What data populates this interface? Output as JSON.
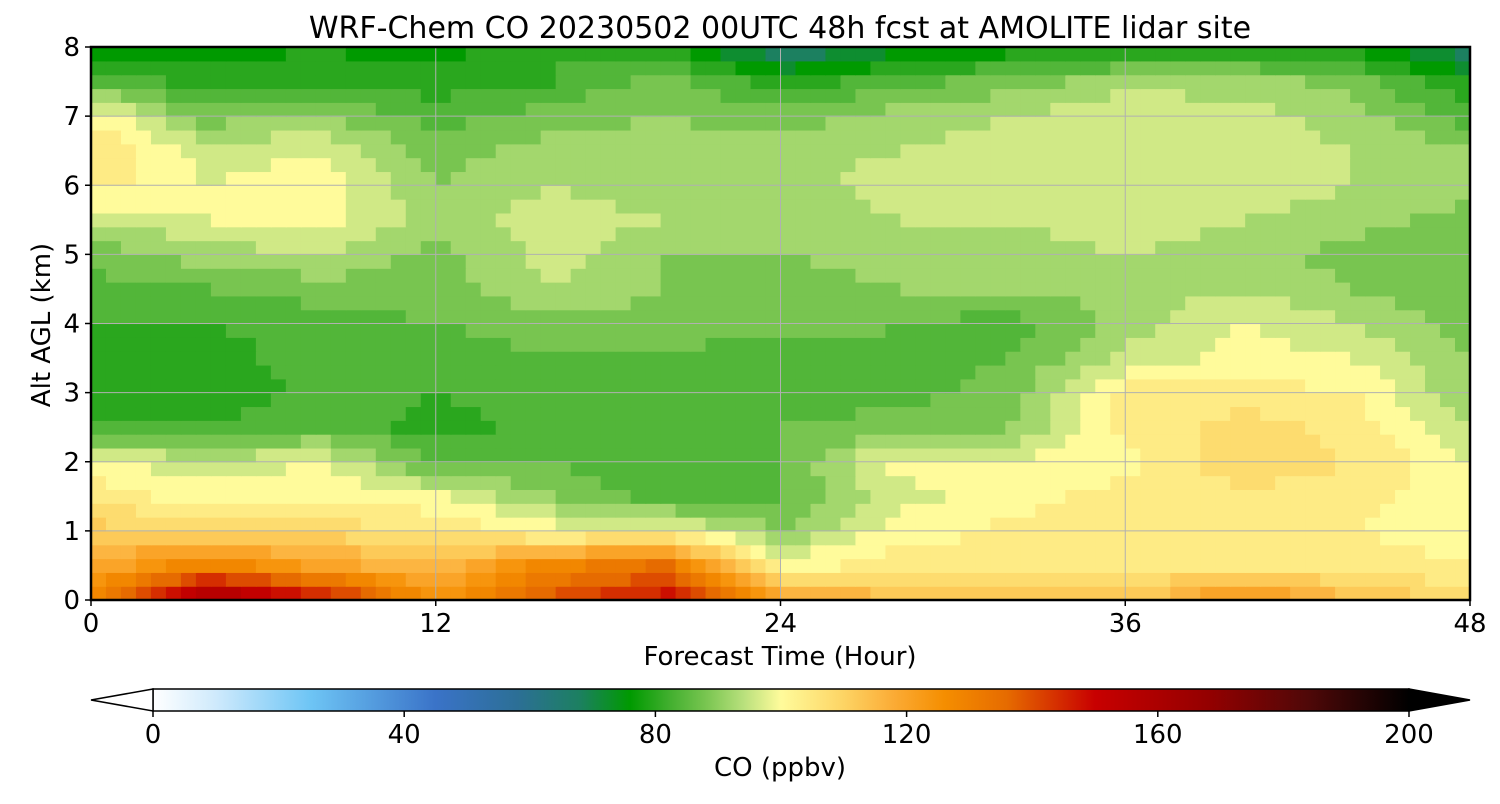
{
  "chart_data": {
    "type": "heatmap",
    "title": "WRF-Chem CO  20230502 00UTC 48h fcst at AMOLITE lidar site",
    "xlabel": "Forecast Time (Hour)",
    "ylabel": "Alt AGL (km)",
    "xlim": [
      0,
      48
    ],
    "ylim": [
      0,
      8
    ],
    "xticks": [
      "0",
      "12",
      "24",
      "36",
      "48"
    ],
    "yticks": [
      "0",
      "1",
      "2",
      "3",
      "4",
      "5",
      "6",
      "7",
      "8"
    ],
    "grid": true,
    "x": [
      0,
      4,
      8,
      12,
      16,
      20,
      24,
      28,
      32,
      36,
      40,
      44,
      48
    ],
    "y": [
      0,
      0.5,
      1,
      1.5,
      2,
      2.5,
      3,
      3.5,
      4,
      4.5,
      5,
      5.5,
      6,
      6.5,
      7,
      7.5,
      8
    ],
    "z": [
      [
        128,
        165,
        150,
        125,
        140,
        150,
        122,
        115,
        112,
        112,
        125,
        115,
        108
      ],
      [
        118,
        130,
        120,
        115,
        128,
        135,
        100,
        104,
        103,
        104,
        106,
        104,
        102
      ],
      [
        112,
        110,
        108,
        106,
        100,
        100,
        90,
        100,
        103,
        103,
        103,
        102,
        100
      ],
      [
        104,
        100,
        102,
        99,
        90,
        84,
        86,
        96,
        101,
        103,
        105,
        103,
        100
      ],
      [
        100,
        95,
        98,
        85,
        86,
        82,
        86,
        100,
        99,
        101,
        109,
        106,
        98
      ],
      [
        82,
        82,
        86,
        80,
        84,
        82,
        86,
        88,
        90,
        103,
        108,
        104,
        94
      ],
      [
        78,
        78,
        84,
        82,
        84,
        84,
        84,
        84,
        88,
        104,
        104,
        102,
        90
      ],
      [
        80,
        80,
        84,
        84,
        86,
        85,
        84,
        85,
        86,
        95,
        100,
        98,
        90
      ],
      [
        82,
        82,
        84,
        86,
        88,
        88,
        88,
        86,
        84,
        92,
        98,
        94,
        88
      ],
      [
        84,
        86,
        88,
        88,
        94,
        90,
        88,
        90,
        90,
        92,
        94,
        90,
        86
      ],
      [
        88,
        92,
        94,
        88,
        96,
        90,
        90,
        92,
        92,
        94,
        92,
        88,
        86
      ],
      [
        94,
        98,
        100,
        92,
        96,
        94,
        90,
        94,
        94,
        96,
        94,
        92,
        88
      ],
      [
        104,
        98,
        100,
        90,
        94,
        92,
        92,
        96,
        96,
        98,
        96,
        94,
        92
      ],
      [
        106,
        96,
        98,
        88,
        92,
        92,
        92,
        94,
        96,
        98,
        96,
        94,
        90
      ],
      [
        102,
        88,
        90,
        84,
        88,
        90,
        88,
        92,
        94,
        98,
        96,
        92,
        84
      ],
      [
        86,
        80,
        80,
        80,
        82,
        88,
        80,
        84,
        88,
        92,
        92,
        88,
        78
      ],
      [
        76,
        76,
        78,
        76,
        82,
        80,
        64,
        72,
        76,
        78,
        78,
        76,
        66
      ]
    ],
    "colorbar": {
      "label": "CO  (ppbv)",
      "min": 0,
      "max": 200,
      "extend": "both",
      "ticks": [
        "0",
        "40",
        "80",
        "120",
        "160",
        "200"
      ],
      "colormap": [
        {
          "value": 0,
          "color": "#ffffff"
        },
        {
          "value": 10,
          "color": "#cfeafc"
        },
        {
          "value": 25,
          "color": "#6ec5f5"
        },
        {
          "value": 45,
          "color": "#3a73c8"
        },
        {
          "value": 58,
          "color": "#2c6f96"
        },
        {
          "value": 68,
          "color": "#1c8060"
        },
        {
          "value": 76,
          "color": "#009a00"
        },
        {
          "value": 82,
          "color": "#3fae2d"
        },
        {
          "value": 88,
          "color": "#78c550"
        },
        {
          "value": 94,
          "color": "#b8e07c"
        },
        {
          "value": 100,
          "color": "#fffb9b"
        },
        {
          "value": 110,
          "color": "#fdd464"
        },
        {
          "value": 118,
          "color": "#fbab35"
        },
        {
          "value": 126,
          "color": "#f58e00"
        },
        {
          "value": 136,
          "color": "#e66b00"
        },
        {
          "value": 150,
          "color": "#c80000"
        },
        {
          "value": 168,
          "color": "#940000"
        },
        {
          "value": 184,
          "color": "#4f0808"
        },
        {
          "value": 200,
          "color": "#000000"
        }
      ]
    }
  }
}
